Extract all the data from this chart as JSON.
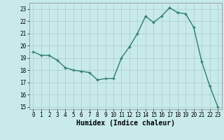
{
  "x": [
    0,
    1,
    2,
    3,
    4,
    5,
    6,
    7,
    8,
    9,
    10,
    11,
    12,
    13,
    14,
    15,
    16,
    17,
    18,
    19,
    20,
    21,
    22,
    23
  ],
  "y": [
    19.5,
    19.2,
    19.2,
    18.8,
    18.2,
    18.0,
    17.9,
    17.8,
    17.2,
    17.3,
    17.3,
    19.0,
    19.9,
    21.0,
    22.4,
    21.9,
    22.4,
    23.1,
    22.7,
    22.6,
    21.5,
    18.7,
    16.7,
    15.0
  ],
  "line_color": "#2d7d6e",
  "marker": "+",
  "marker_size": 3,
  "bg_color": "#c8eaea",
  "grid_color": "#b0d0d0",
  "xlabel": "Humidex (Indice chaleur)",
  "xlim": [
    -0.5,
    23.5
  ],
  "ylim": [
    14.8,
    23.5
  ],
  "yticks": [
    15,
    16,
    17,
    18,
    19,
    20,
    21,
    22,
    23
  ],
  "xticks": [
    0,
    1,
    2,
    3,
    4,
    5,
    6,
    7,
    8,
    9,
    10,
    11,
    12,
    13,
    14,
    15,
    16,
    17,
    18,
    19,
    20,
    21,
    22,
    23
  ],
  "tick_fontsize": 5.5,
  "label_fontsize": 7,
  "linewidth": 1.0,
  "markeredgewidth": 1.0
}
